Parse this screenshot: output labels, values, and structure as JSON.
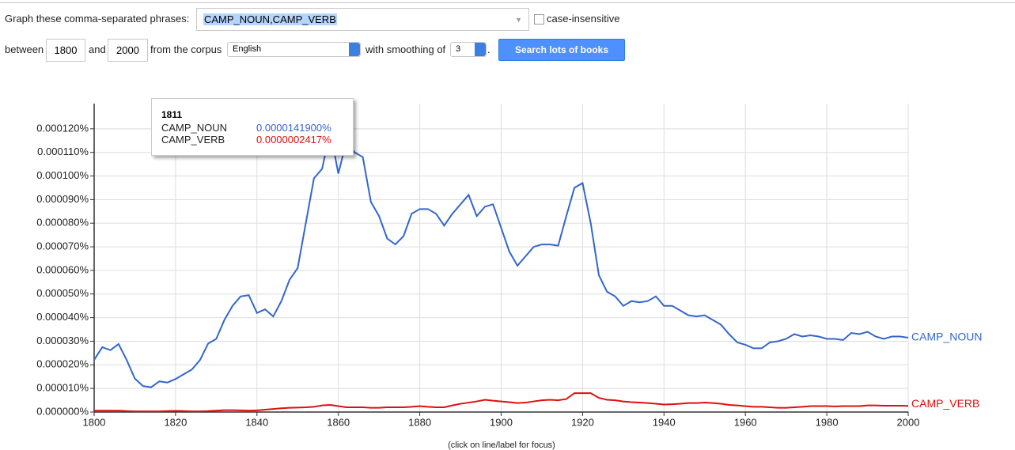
{
  "form": {
    "phrases_label": "Graph these comma-separated phrases:",
    "phrases": "CAMP_NOUN,CAMP_VERB",
    "case_label": "case-insensitive",
    "between": "between",
    "start_year": "1800",
    "and": "and",
    "end_year": "2000",
    "corpus_label": "from the corpus",
    "corpus": "English",
    "smoothing_label": "with smoothing of",
    "smoothing": "3",
    "period": ".",
    "button": "Search lots of books"
  },
  "chart_data": {
    "type": "line",
    "x": [
      1800,
      1802,
      1804,
      1806,
      1808,
      1810,
      1812,
      1814,
      1816,
      1818,
      1820,
      1822,
      1824,
      1826,
      1828,
      1830,
      1832,
      1834,
      1836,
      1838,
      1840,
      1842,
      1844,
      1846,
      1848,
      1850,
      1852,
      1854,
      1856,
      1858,
      1860,
      1862,
      1864,
      1866,
      1868,
      1870,
      1872,
      1874,
      1876,
      1878,
      1880,
      1882,
      1884,
      1886,
      1888,
      1890,
      1892,
      1894,
      1896,
      1898,
      1900,
      1902,
      1904,
      1906,
      1908,
      1910,
      1912,
      1914,
      1916,
      1918,
      1920,
      1922,
      1924,
      1926,
      1928,
      1930,
      1932,
      1934,
      1936,
      1938,
      1940,
      1942,
      1944,
      1946,
      1948,
      1950,
      1952,
      1954,
      1956,
      1958,
      1960,
      1962,
      1964,
      1966,
      1968,
      1970,
      1972,
      1974,
      1976,
      1978,
      1980,
      1982,
      1984,
      1986,
      1988,
      1990,
      1992,
      1994,
      1996,
      1998,
      2000
    ],
    "series": [
      {
        "name": "CAMP_NOUN",
        "color": "#3366cc",
        "values": [
          2.21e-05,
          2.75e-05,
          2.62e-05,
          2.88e-05,
          2.2e-05,
          1.42e-05,
          1.1e-05,
          1.05e-05,
          1.3e-05,
          1.25e-05,
          1.4e-05,
          1.6e-05,
          1.8e-05,
          2.2e-05,
          2.9e-05,
          3.1e-05,
          3.9e-05,
          4.5e-05,
          4.9e-05,
          4.95e-05,
          4.2e-05,
          4.35e-05,
          4.05e-05,
          4.7e-05,
          5.6e-05,
          6.1e-05,
          8e-05,
          9.9e-05,
          0.000103,
          0.000119,
          0.000101,
          0.000115,
          0.00011,
          0.000108,
          8.9e-05,
          8.3e-05,
          7.35e-05,
          7.1e-05,
          7.45e-05,
          8.4e-05,
          8.6e-05,
          8.6e-05,
          8.4e-05,
          7.9e-05,
          8.4e-05,
          8.8e-05,
          9.2e-05,
          8.3e-05,
          8.7e-05,
          8.8e-05,
          7.8e-05,
          6.8e-05,
          6.2e-05,
          6.6e-05,
          7e-05,
          7.1e-05,
          7.1e-05,
          7.05e-05,
          8.3e-05,
          9.5e-05,
          9.7e-05,
          8e-05,
          5.8e-05,
          5.1e-05,
          4.9e-05,
          4.5e-05,
          4.7e-05,
          4.65e-05,
          4.7e-05,
          4.9e-05,
          4.5e-05,
          4.5e-05,
          4.3e-05,
          4.1e-05,
          4.05e-05,
          4.1e-05,
          3.9e-05,
          3.7e-05,
          3.3e-05,
          2.95e-05,
          2.85e-05,
          2.7e-05,
          2.7e-05,
          2.95e-05,
          3e-05,
          3.1e-05,
          3.3e-05,
          3.2e-05,
          3.25e-05,
          3.2e-05,
          3.1e-05,
          3.1e-05,
          3.05e-05,
          3.35e-05,
          3.3e-05,
          3.4e-05,
          3.2e-05,
          3.1e-05,
          3.2e-05,
          3.2e-05,
          3.15e-05
        ]
      },
      {
        "name": "CAMP_VERB",
        "color": "#dc1010",
        "values": [
          6e-07,
          6e-07,
          6e-07,
          6e-07,
          4e-07,
          3e-07,
          3e-07,
          3e-07,
          3e-07,
          4e-07,
          5e-07,
          4e-07,
          3e-07,
          3e-07,
          4e-07,
          6e-07,
          8e-07,
          8e-07,
          7e-07,
          6e-07,
          7e-07,
          1e-06,
          1.3e-06,
          1.6e-06,
          1.8e-06,
          1.9e-06,
          2e-06,
          2.2e-06,
          2.8e-06,
          3e-06,
          2.5e-06,
          2e-06,
          2e-06,
          2e-06,
          1.8e-06,
          1.8e-06,
          2e-06,
          2e-06,
          2e-06,
          2.2e-06,
          2.5e-06,
          2.2e-06,
          2e-06,
          2e-06,
          2.8e-06,
          3.5e-06,
          4e-06,
          4.5e-06,
          5.2e-06,
          4.8e-06,
          4.5e-06,
          4.2e-06,
          3.8e-06,
          4e-06,
          4.5e-06,
          5e-06,
          5.2e-06,
          5e-06,
          5.5e-06,
          8e-06,
          8e-06,
          8e-06,
          6e-06,
          5.2e-06,
          5e-06,
          4.5e-06,
          4.2e-06,
          4e-06,
          3.8e-06,
          3.5e-06,
          3.2e-06,
          3.3e-06,
          3.5e-06,
          3.8e-06,
          3.8e-06,
          4e-06,
          3.8e-06,
          3.5e-06,
          3e-06,
          2.8e-06,
          2.5e-06,
          2.2e-06,
          2.2e-06,
          2e-06,
          1.8e-06,
          1.8e-06,
          2e-06,
          2.2e-06,
          2.5e-06,
          2.5e-06,
          2.5e-06,
          2.4e-06,
          2.5e-06,
          2.5e-06,
          2.5e-06,
          2.8e-06,
          2.8e-06,
          2.7e-06,
          2.7e-06,
          2.7e-06,
          2.6e-06
        ]
      }
    ],
    "xlim": [
      1800,
      2000
    ],
    "xticks": [
      1800,
      1820,
      1840,
      1860,
      1880,
      1900,
      1920,
      1940,
      1960,
      1980,
      2000
    ],
    "ylim": [
      0,
      0.00013
    ],
    "yticks": [
      {
        "value": 0,
        "label": "0.000000%"
      },
      {
        "value": 1e-05,
        "label": "0.000010%"
      },
      {
        "value": 2e-05,
        "label": "0.000020%"
      },
      {
        "value": 3e-05,
        "label": "0.000030%"
      },
      {
        "value": 4e-05,
        "label": "0.000040%"
      },
      {
        "value": 5e-05,
        "label": "0.000050%"
      },
      {
        "value": 6e-05,
        "label": "0.000060%"
      },
      {
        "value": 7e-05,
        "label": "0.000070%"
      },
      {
        "value": 8e-05,
        "label": "0.000080%"
      },
      {
        "value": 9e-05,
        "label": "0.000090%"
      },
      {
        "value": 0.0001,
        "label": "0.000100%"
      },
      {
        "value": 0.00011,
        "label": "0.000110%"
      },
      {
        "value": 0.00012,
        "label": "0.000120%"
      }
    ],
    "grid": true
  },
  "tooltip": {
    "year": "1811",
    "rows": [
      {
        "name": "CAMP_NOUN",
        "value": "0.0000141900%",
        "color": "#3366cc"
      },
      {
        "name": "CAMP_VERB",
        "value": "0.0000002417%",
        "color": "#dc1010"
      }
    ]
  },
  "footer": "(click on line/label for focus)"
}
